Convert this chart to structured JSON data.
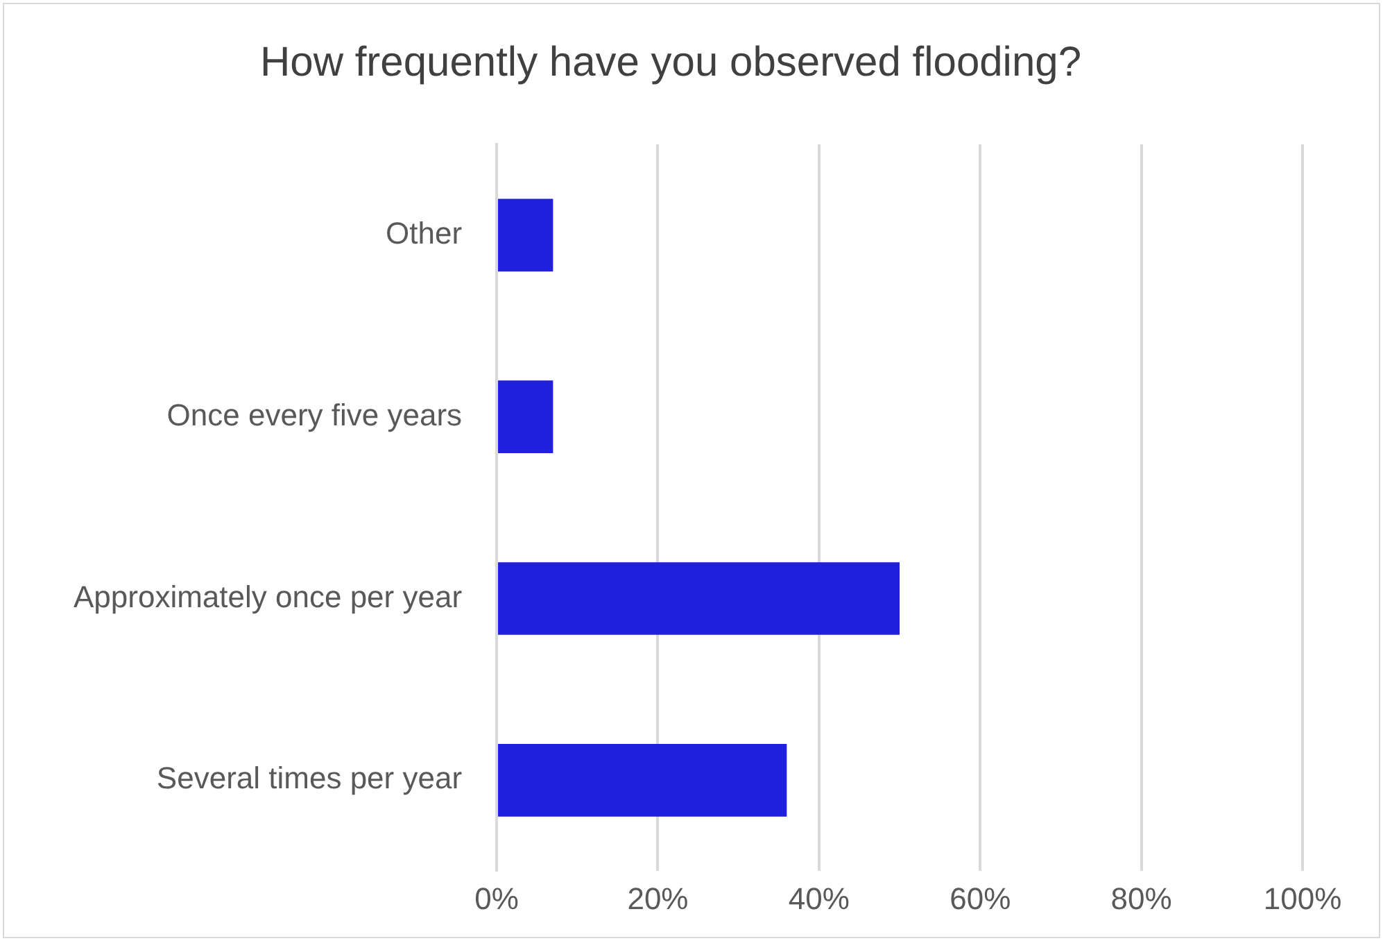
{
  "chart_data": {
    "type": "bar",
    "orientation": "horizontal",
    "title": "How frequently have you observed flooding?",
    "categories": [
      "Other",
      "Once every five years",
      "Approximately once per year",
      "Several times per year"
    ],
    "values": [
      7,
      7,
      50,
      36
    ],
    "color": "#2020dd",
    "xlim": [
      0,
      100
    ],
    "xticks": [
      {
        "value": 0,
        "label": "0%"
      },
      {
        "value": 20,
        "label": "20%"
      },
      {
        "value": 40,
        "label": "40%"
      },
      {
        "value": 60,
        "label": "60%"
      },
      {
        "value": 80,
        "label": "80%"
      },
      {
        "value": 100,
        "label": "100%"
      }
    ],
    "grid": "x"
  }
}
